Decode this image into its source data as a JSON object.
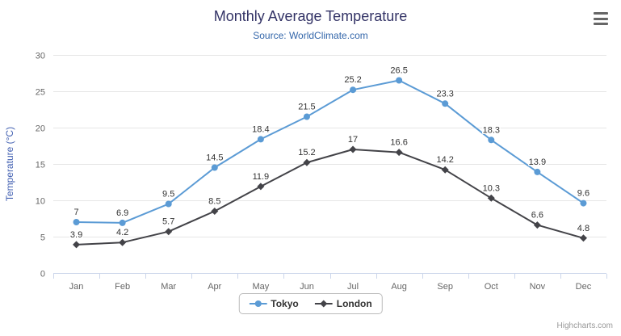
{
  "chart_data": {
    "type": "line",
    "title": "Monthly Average Temperature",
    "subtitle": "Source: WorldClimate.com",
    "xlabel": "",
    "ylabel": "Temperature (°C)",
    "ylim": [
      0,
      30
    ],
    "ytick_interval": 5,
    "grid": true,
    "legend_position": "bottom",
    "data_labels": true,
    "categories": [
      "Jan",
      "Feb",
      "Mar",
      "Apr",
      "May",
      "Jun",
      "Jul",
      "Aug",
      "Sep",
      "Oct",
      "Nov",
      "Dec"
    ],
    "series": [
      {
        "name": "Tokyo",
        "marker": "circle",
        "color": "#5b9bd5",
        "values": [
          7,
          6.9,
          9.5,
          14.5,
          18.4,
          21.5,
          25.2,
          26.5,
          23.3,
          18.3,
          13.9,
          9.6
        ]
      },
      {
        "name": "London",
        "marker": "diamond",
        "color": "#434348",
        "values": [
          3.9,
          4.2,
          5.7,
          8.5,
          11.9,
          15.2,
          17,
          16.6,
          14.2,
          10.3,
          6.6,
          4.8
        ]
      }
    ],
    "colors": {
      "title": "#333366",
      "subtitle": "#3366aa",
      "axis_title": "#4361b2",
      "axis_labels": "#666666",
      "grid": "#e6e6e6",
      "axis_line": "#ccd6eb",
      "data_label_text": "#333333"
    }
  },
  "icons": {
    "export_menu": "hamburger-icon"
  },
  "credits": {
    "label": "Highcharts.com"
  }
}
